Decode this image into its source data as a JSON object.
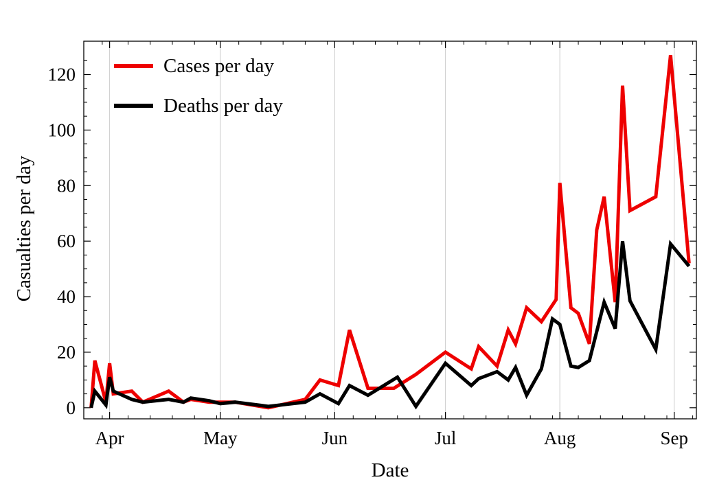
{
  "chart_data": {
    "type": "line",
    "title": "",
    "xlabel": "Date",
    "ylabel": "Casualties per day",
    "ylim": [
      -4,
      132
    ],
    "xlim": [
      "2020-03-25",
      "2020-09-07"
    ],
    "grid": "vertical at month starts",
    "legend_position": "top-left",
    "x_ticks": [
      {
        "label": "Apr",
        "date": "2020-04-01"
      },
      {
        "label": "May",
        "date": "2020-05-01"
      },
      {
        "label": "Jun",
        "date": "2020-06-01"
      },
      {
        "label": "Jul",
        "date": "2020-07-01"
      },
      {
        "label": "Aug",
        "date": "2020-08-01"
      },
      {
        "label": "Sep",
        "date": "2020-09-01"
      }
    ],
    "y_ticks": [
      0,
      20,
      40,
      60,
      80,
      100,
      120
    ],
    "series": [
      {
        "name": "Cases per day",
        "color": "#ee0000",
        "points": [
          [
            "2020-03-27",
            0
          ],
          [
            "2020-03-28",
            17
          ],
          [
            "2020-03-31",
            2
          ],
          [
            "2020-04-01",
            16
          ],
          [
            "2020-04-02",
            5
          ],
          [
            "2020-04-07",
            6
          ],
          [
            "2020-04-10",
            2
          ],
          [
            "2020-04-17",
            6
          ],
          [
            "2020-04-21",
            2
          ],
          [
            "2020-04-23",
            3
          ],
          [
            "2020-04-28",
            2
          ],
          [
            "2020-05-05",
            2
          ],
          [
            "2020-05-14",
            0
          ],
          [
            "2020-05-24",
            3
          ],
          [
            "2020-05-28",
            10
          ],
          [
            "2020-06-02",
            8
          ],
          [
            "2020-06-05",
            28
          ],
          [
            "2020-06-10",
            7
          ],
          [
            "2020-06-17",
            7
          ],
          [
            "2020-06-23",
            12
          ],
          [
            "2020-07-01",
            20
          ],
          [
            "2020-07-08",
            14
          ],
          [
            "2020-07-10",
            22
          ],
          [
            "2020-07-15",
            15
          ],
          [
            "2020-07-18",
            28
          ],
          [
            "2020-07-20",
            23
          ],
          [
            "2020-07-23",
            36
          ],
          [
            "2020-07-27",
            31
          ],
          [
            "2020-07-31",
            39
          ],
          [
            "2020-08-01",
            81
          ],
          [
            "2020-08-04",
            36
          ],
          [
            "2020-08-06",
            34
          ],
          [
            "2020-08-09",
            23
          ],
          [
            "2020-08-11",
            64
          ],
          [
            "2020-08-13",
            76
          ],
          [
            "2020-08-16",
            38
          ],
          [
            "2020-08-18",
            116
          ],
          [
            "2020-08-20",
            71
          ],
          [
            "2020-08-27",
            76
          ],
          [
            "2020-08-31",
            127
          ],
          [
            "2020-09-05",
            52
          ]
        ]
      },
      {
        "name": "Deaths per day",
        "color": "#000000",
        "points": [
          [
            "2020-03-27",
            0
          ],
          [
            "2020-03-28",
            6
          ],
          [
            "2020-03-31",
            1
          ],
          [
            "2020-04-01",
            11
          ],
          [
            "2020-04-02",
            6
          ],
          [
            "2020-04-07",
            3
          ],
          [
            "2020-04-10",
            2
          ],
          [
            "2020-04-17",
            3
          ],
          [
            "2020-04-21",
            2
          ],
          [
            "2020-04-23",
            3.5
          ],
          [
            "2020-04-28",
            2.5
          ],
          [
            "2020-05-01",
            1.5
          ],
          [
            "2020-05-05",
            2
          ],
          [
            "2020-05-14",
            0.5
          ],
          [
            "2020-05-24",
            2
          ],
          [
            "2020-05-28",
            5
          ],
          [
            "2020-06-02",
            1.5
          ],
          [
            "2020-06-05",
            8
          ],
          [
            "2020-06-10",
            4.5
          ],
          [
            "2020-06-18",
            11
          ],
          [
            "2020-06-23",
            0.5
          ],
          [
            "2020-07-01",
            16
          ],
          [
            "2020-07-08",
            8
          ],
          [
            "2020-07-10",
            10.5
          ],
          [
            "2020-07-15",
            13
          ],
          [
            "2020-07-18",
            10
          ],
          [
            "2020-07-20",
            14.5
          ],
          [
            "2020-07-23",
            4.5
          ],
          [
            "2020-07-27",
            14
          ],
          [
            "2020-07-30",
            32
          ],
          [
            "2020-08-01",
            30
          ],
          [
            "2020-08-04",
            15
          ],
          [
            "2020-08-06",
            14.5
          ],
          [
            "2020-08-09",
            17
          ],
          [
            "2020-08-13",
            38
          ],
          [
            "2020-08-16",
            28.5
          ],
          [
            "2020-08-18",
            60
          ],
          [
            "2020-08-20",
            38.5
          ],
          [
            "2020-08-27",
            21
          ],
          [
            "2020-08-31",
            59
          ],
          [
            "2020-09-05",
            51
          ]
        ]
      }
    ]
  }
}
